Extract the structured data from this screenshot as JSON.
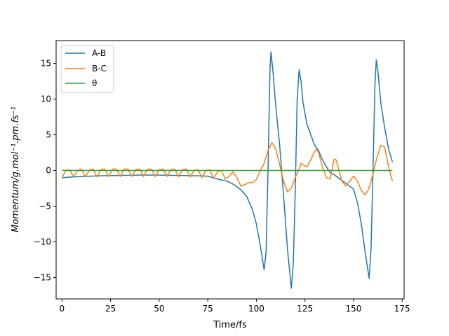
{
  "chart_data": {
    "type": "line",
    "title": "",
    "xlabel": "Time/fs",
    "ylabel": "Momentum/g.mol⁻¹.pm.fs⁻¹",
    "xlim": [
      -3,
      176
    ],
    "ylim": [
      -18,
      18.2
    ],
    "xticks": [
      0,
      25,
      50,
      75,
      100,
      125,
      150,
      175
    ],
    "yticks": [
      -15,
      -10,
      -5,
      0,
      5,
      10,
      15
    ],
    "grid": false,
    "legend_position": "upper-left",
    "series": [
      {
        "name": "A-B",
        "color": "#1f77b4",
        "points": [
          [
            0,
            -1.0
          ],
          [
            10,
            -0.85
          ],
          [
            20,
            -0.75
          ],
          [
            30,
            -0.7
          ],
          [
            40,
            -0.65
          ],
          [
            50,
            -0.65
          ],
          [
            60,
            -0.7
          ],
          [
            70,
            -0.75
          ],
          [
            75,
            -0.8
          ],
          [
            80,
            -1.2
          ],
          [
            85,
            -1.5
          ],
          [
            88,
            -1.9
          ],
          [
            92,
            -2.7
          ],
          [
            95,
            -3.6
          ],
          [
            98,
            -5.5
          ],
          [
            100,
            -7.5
          ],
          [
            102,
            -10.5
          ],
          [
            104,
            -13.9
          ],
          [
            105,
            -11.5
          ],
          [
            106,
            0
          ],
          [
            107,
            14.0
          ],
          [
            107.5,
            16.6
          ],
          [
            108.5,
            14.0
          ],
          [
            110,
            9.0
          ],
          [
            112,
            3.5
          ],
          [
            114,
            -3.5
          ],
          [
            116,
            -11.0
          ],
          [
            118,
            -16.5
          ],
          [
            119,
            -13.0
          ],
          [
            120,
            -3.0
          ],
          [
            121,
            10.0
          ],
          [
            122,
            14.1
          ],
          [
            123,
            12.5
          ],
          [
            124,
            9.5
          ],
          [
            126,
            6.5
          ],
          [
            128,
            5.0
          ],
          [
            130,
            3.5
          ],
          [
            132,
            2.8
          ],
          [
            134,
            1.5
          ],
          [
            136,
            0.5
          ],
          [
            138,
            -0.3
          ],
          [
            140,
            -0.6
          ],
          [
            142,
            -1.0
          ],
          [
            145,
            -1.6
          ],
          [
            148,
            -2.2
          ],
          [
            150,
            -2.6
          ],
          [
            152,
            -4.5
          ],
          [
            154,
            -7.5
          ],
          [
            156,
            -11.5
          ],
          [
            158,
            -15.1
          ],
          [
            159,
            -11.0
          ],
          [
            160,
            0
          ],
          [
            161,
            12.0
          ],
          [
            161.7,
            15.5
          ],
          [
            162.5,
            14.0
          ],
          [
            164,
            9.5
          ],
          [
            166,
            6.0
          ],
          [
            168,
            3.0
          ],
          [
            170,
            1.2
          ]
        ]
      },
      {
        "name": "B-C",
        "color": "#ff7f0e",
        "points": [
          [
            0,
            -1.0
          ],
          [
            2,
            0.0
          ],
          [
            4,
            0.1
          ],
          [
            6,
            -0.9
          ],
          [
            8,
            0.0
          ],
          [
            10,
            0.2
          ],
          [
            12,
            -0.9
          ],
          [
            14,
            0.0
          ],
          [
            16,
            0.2
          ],
          [
            18,
            -0.9
          ],
          [
            20,
            0.1
          ],
          [
            22,
            0.2
          ],
          [
            24,
            -0.85
          ],
          [
            26,
            0.2
          ],
          [
            28,
            0.2
          ],
          [
            30,
            -0.85
          ],
          [
            32,
            0.2
          ],
          [
            34,
            0.2
          ],
          [
            36,
            -0.85
          ],
          [
            38,
            0.1
          ],
          [
            40,
            0.2
          ],
          [
            42,
            -0.85
          ],
          [
            44,
            0.2
          ],
          [
            46,
            0.2
          ],
          [
            48,
            -0.85
          ],
          [
            50,
            0.1
          ],
          [
            52,
            0.2
          ],
          [
            54,
            -0.85
          ],
          [
            56,
            0.1
          ],
          [
            58,
            0.2
          ],
          [
            60,
            -0.9
          ],
          [
            62,
            0.1
          ],
          [
            64,
            0.2
          ],
          [
            66,
            -0.9
          ],
          [
            68,
            0.0
          ],
          [
            70,
            0.1
          ],
          [
            72,
            -1.0
          ],
          [
            74,
            0.0
          ],
          [
            76,
            0.1
          ],
          [
            78,
            -1.1
          ],
          [
            80,
            -0.2
          ],
          [
            82,
            0.0
          ],
          [
            84,
            -1.2
          ],
          [
            86,
            -0.8
          ],
          [
            88,
            -0.2
          ],
          [
            90,
            -1.0
          ],
          [
            92,
            -2.2
          ],
          [
            94,
            -2.0
          ],
          [
            96,
            -1.7
          ],
          [
            98,
            -1.7
          ],
          [
            100,
            -1.3
          ],
          [
            102,
            0.0
          ],
          [
            104,
            1.0
          ],
          [
            106,
            2.8
          ],
          [
            108,
            3.9
          ],
          [
            110,
            3.0
          ],
          [
            112,
            0.8
          ],
          [
            114,
            -1.5
          ],
          [
            116,
            -3.0
          ],
          [
            118,
            -2.5
          ],
          [
            120,
            -1.0
          ],
          [
            122,
            0.2
          ],
          [
            123,
            1.0
          ],
          [
            124,
            0.8
          ],
          [
            126,
            0.5
          ],
          [
            128,
            1.5
          ],
          [
            130,
            2.7
          ],
          [
            131,
            3.0
          ],
          [
            132,
            2.5
          ],
          [
            134,
            0.5
          ],
          [
            136,
            -1.0
          ],
          [
            138,
            -1.2
          ],
          [
            140,
            1.6
          ],
          [
            141,
            1.5
          ],
          [
            142,
            0.5
          ],
          [
            144,
            -1.5
          ],
          [
            146,
            -2.2
          ],
          [
            148,
            -1.5
          ],
          [
            150,
            -0.8
          ],
          [
            152,
            -1.5
          ],
          [
            154,
            -2.8
          ],
          [
            156,
            -3.4
          ],
          [
            158,
            -2.5
          ],
          [
            160,
            -0.5
          ],
          [
            162,
            1.8
          ],
          [
            164,
            3.5
          ],
          [
            166,
            3.3
          ],
          [
            168,
            0.5
          ],
          [
            170,
            -1.5
          ]
        ]
      },
      {
        "name": "θ",
        "color": "#2ca02c",
        "points": [
          [
            0,
            0.0
          ],
          [
            170,
            0.0
          ]
        ]
      }
    ]
  }
}
